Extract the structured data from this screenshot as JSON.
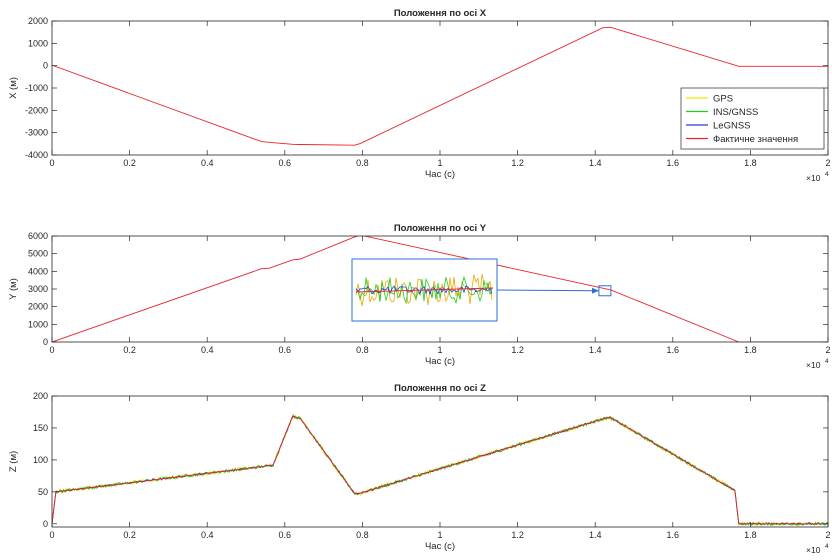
{
  "chart_data": [
    {
      "type": "line",
      "title": "Положення по осі X",
      "xlabel": "Час (с)",
      "ylabel": "X (м)",
      "x_exponent_label": "×10",
      "x_exponent_power": "4",
      "xlim": [
        0,
        20000
      ],
      "ylim": [
        -4000,
        2000
      ],
      "xticks": [
        0,
        2000,
        4000,
        6000,
        8000,
        10000,
        12000,
        14000,
        16000,
        18000,
        20000
      ],
      "xtick_labels": [
        "0",
        "0.2",
        "0.4",
        "0.6",
        "0.8",
        "1",
        "1.2",
        "1.4",
        "1.6",
        "1.8",
        "2"
      ],
      "yticks": [
        2000,
        1000,
        0,
        -1000,
        -2000,
        -3000,
        -4000
      ],
      "ytick_labels": [
        "2000",
        "1000",
        "0",
        "-1000",
        "-2000",
        "-3000",
        "-4000"
      ],
      "grid": false,
      "legend": "inside-bottom-right",
      "series": [
        {
          "name": "GPS",
          "color": "#f2e400"
        },
        {
          "name": "INS/GNSS",
          "color": "#22cc22"
        },
        {
          "name": "LeGNSS",
          "color": "#2b3bd6"
        },
        {
          "name": "Фактичне значення",
          "color": "#e8262a",
          "x": [
            0,
            5400,
            5700,
            6200,
            6400,
            7800,
            7950,
            14200,
            14400,
            17700,
            20000
          ],
          "y": [
            20,
            -3400,
            -3450,
            -3520,
            -3530,
            -3560,
            -3480,
            1700,
            1720,
            -30,
            -30
          ]
        }
      ]
    },
    {
      "type": "line",
      "title": "Положення по осі Y",
      "xlabel": "Час (с)",
      "ylabel": "Y (м)",
      "x_exponent_label": "×10",
      "x_exponent_power": "4",
      "xlim": [
        0,
        20000
      ],
      "ylim": [
        0,
        6000
      ],
      "xticks": [
        0,
        2000,
        4000,
        6000,
        8000,
        10000,
        12000,
        14000,
        16000,
        18000,
        20000
      ],
      "xtick_labels": [
        "0",
        "0.2",
        "0.4",
        "0.6",
        "0.8",
        "1",
        "1.2",
        "1.4",
        "1.6",
        "1.8",
        "2"
      ],
      "yticks": [
        6000,
        5000,
        4000,
        3000,
        2000,
        1000,
        0
      ],
      "ytick_labels": [
        "6000",
        "5000",
        "4000",
        "3000",
        "2000",
        "1000",
        "0"
      ],
      "grid": false,
      "series": [
        {
          "name": "Фактичне значення",
          "color": "#e8262a",
          "x": [
            0,
            5400,
            5600,
            6200,
            6400,
            7800,
            7950,
            14400,
            17700,
            20000
          ],
          "y": [
            0,
            4150,
            4180,
            4650,
            4700,
            5950,
            6050,
            2950,
            0,
            0
          ]
        }
      ],
      "annotation": {
        "type": "zoom-inset",
        "target_x": 14250,
        "target_y": 2900,
        "color": "#2b6fd6"
      }
    },
    {
      "type": "line",
      "title": "Положення по осі Z",
      "xlabel": "Час (с)",
      "ylabel": "Z (м)",
      "x_exponent_label": "×10",
      "x_exponent_power": "4",
      "xlim": [
        0,
        20000
      ],
      "ylim": [
        -5,
        200
      ],
      "xticks": [
        0,
        2000,
        4000,
        6000,
        8000,
        10000,
        12000,
        14000,
        16000,
        18000,
        20000
      ],
      "xtick_labels": [
        "0",
        "0.2",
        "0.4",
        "0.6",
        "0.8",
        "1",
        "1.2",
        "1.4",
        "1.6",
        "1.8",
        "2"
      ],
      "yticks": [
        200,
        150,
        100,
        50,
        0
      ],
      "ytick_labels": [
        "200",
        "150",
        "100",
        "50",
        "0"
      ],
      "grid": false,
      "series": [
        {
          "name": "GPS",
          "color": "#f2e400"
        },
        {
          "name": "INS/GNSS",
          "color": "#22cc22"
        },
        {
          "name": "LeGNSS",
          "color": "#2b3bd6"
        },
        {
          "name": "Фактичне значення",
          "color": "#e8262a",
          "x": [
            0,
            100,
            5600,
            5700,
            6200,
            6400,
            7800,
            7950,
            14300,
            14400,
            17600,
            17700,
            20000
          ],
          "y": [
            0,
            50,
            91,
            92,
            168,
            165,
            47,
            48,
            166,
            166,
            52,
            0,
            0
          ]
        }
      ]
    }
  ]
}
